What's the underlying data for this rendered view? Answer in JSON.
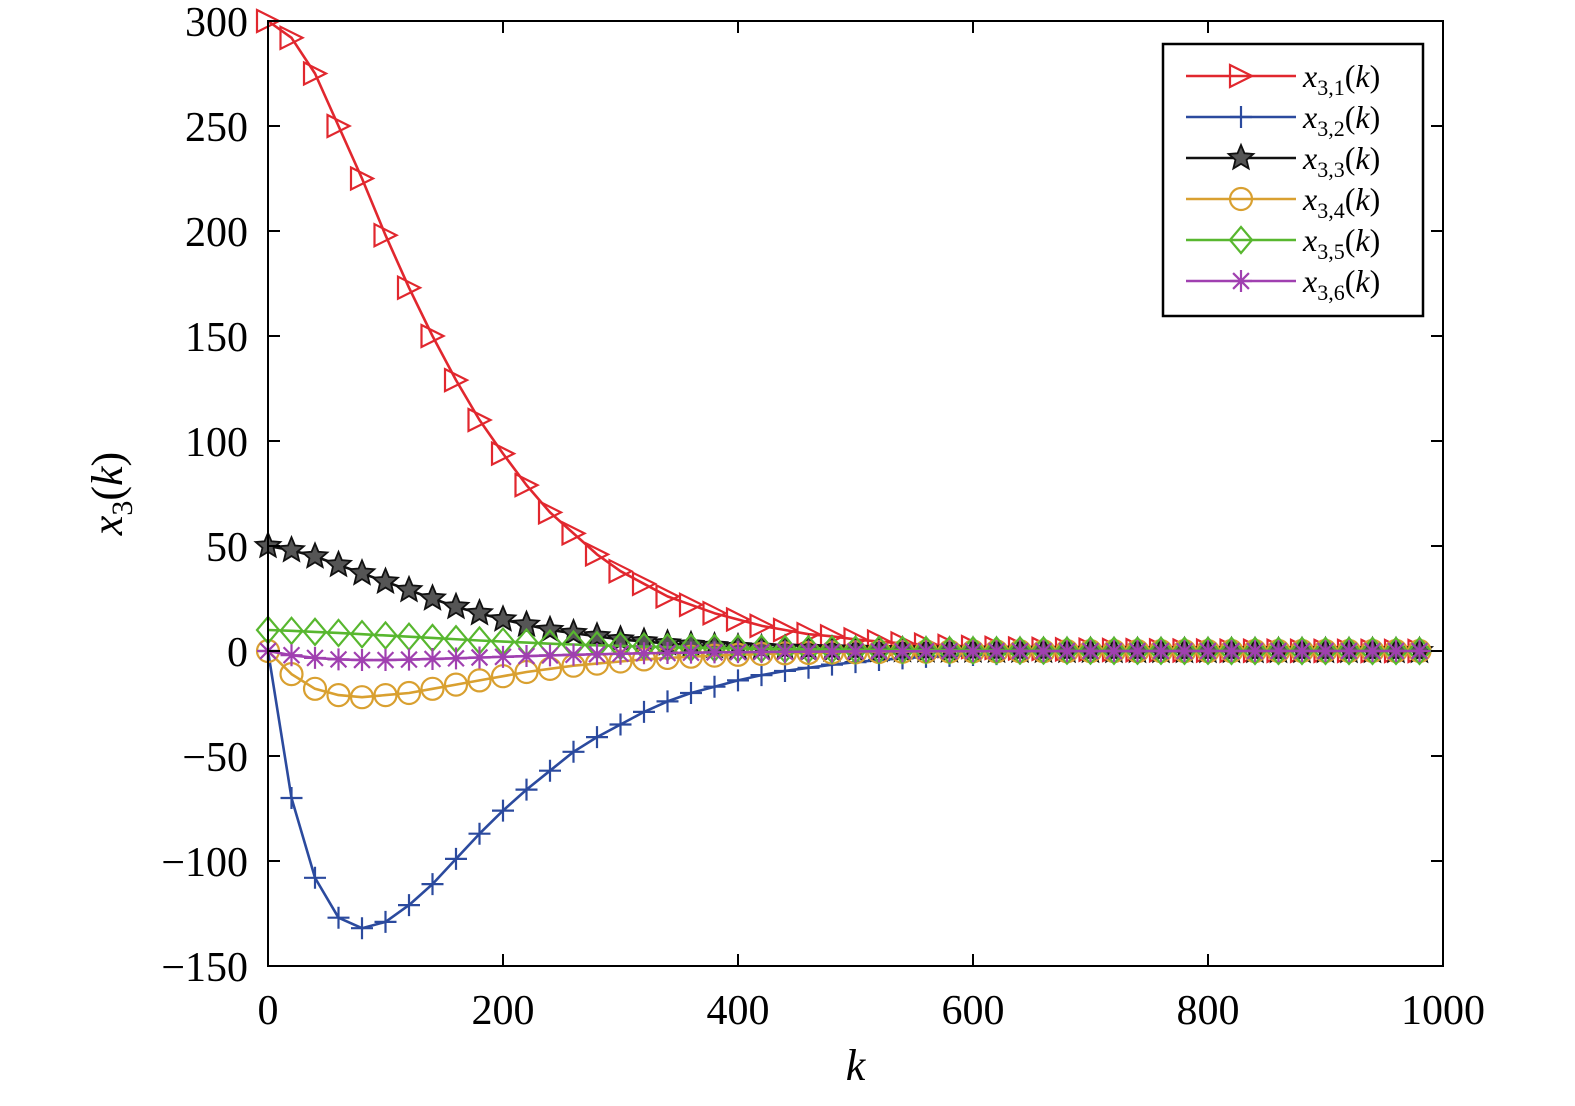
{
  "chart_data": {
    "type": "line",
    "title": "",
    "xlabel": "k",
    "ylabel_parts": {
      "base": "x",
      "sub": "3",
      "arg_open": "(",
      "arg": "k",
      "arg_close": ")"
    },
    "xlim": [
      0,
      1000
    ],
    "ylim": [
      -150,
      300
    ],
    "xticks": [
      0,
      200,
      400,
      600,
      800,
      1000
    ],
    "yticks": [
      -150,
      -100,
      -50,
      0,
      50,
      100,
      150,
      200,
      250,
      300
    ],
    "xtick_labels": [
      "0",
      "200",
      "400",
      "600",
      "800",
      "1000"
    ],
    "ytick_labels": [
      "−150",
      "−100",
      "−50",
      "0",
      "50",
      "100",
      "150",
      "200",
      "250",
      "300"
    ],
    "grid": false,
    "legend_position": "top-right",
    "marker_step": 20,
    "series": [
      {
        "name": "x_{3,1}(k)",
        "label": {
          "base": "x",
          "sub": "3,1",
          "arg": "k"
        },
        "color": "#e1272e",
        "marker": "triangle-right",
        "points": [
          [
            0,
            300
          ],
          [
            20,
            292
          ],
          [
            40,
            275
          ],
          [
            60,
            250
          ],
          [
            80,
            225
          ],
          [
            100,
            198
          ],
          [
            120,
            173
          ],
          [
            140,
            150
          ],
          [
            160,
            129
          ],
          [
            180,
            110
          ],
          [
            200,
            94
          ],
          [
            220,
            79
          ],
          [
            240,
            66
          ],
          [
            260,
            56
          ],
          [
            280,
            46
          ],
          [
            300,
            38
          ],
          [
            320,
            32
          ],
          [
            340,
            26
          ],
          [
            360,
            22
          ],
          [
            380,
            18
          ],
          [
            400,
            15
          ],
          [
            420,
            12
          ],
          [
            440,
            10
          ],
          [
            460,
            8
          ],
          [
            480,
            7
          ],
          [
            500,
            5.5
          ],
          [
            520,
            4.5
          ],
          [
            540,
            3.6
          ],
          [
            560,
            3
          ],
          [
            580,
            2.4
          ],
          [
            600,
            1.9
          ],
          [
            620,
            1.5
          ],
          [
            640,
            1.2
          ],
          [
            660,
            1
          ],
          [
            680,
            0.8
          ],
          [
            700,
            0.6
          ],
          [
            720,
            0.5
          ],
          [
            740,
            0.4
          ],
          [
            760,
            0.3
          ],
          [
            780,
            0.25
          ],
          [
            800,
            0.2
          ],
          [
            820,
            0.15
          ],
          [
            840,
            0.12
          ],
          [
            860,
            0.1
          ],
          [
            880,
            0.08
          ],
          [
            900,
            0.06
          ],
          [
            920,
            0.05
          ],
          [
            940,
            0.04
          ],
          [
            960,
            0.03
          ],
          [
            980,
            0.02
          ]
        ]
      },
      {
        "name": "x_{3,2}(k)",
        "label": {
          "base": "x",
          "sub": "3,2",
          "arg": "k"
        },
        "color": "#2b4a9e",
        "marker": "plus",
        "points": [
          [
            0,
            0
          ],
          [
            20,
            -70
          ],
          [
            40,
            -108
          ],
          [
            60,
            -127
          ],
          [
            80,
            -132
          ],
          [
            100,
            -129
          ],
          [
            120,
            -121
          ],
          [
            140,
            -111
          ],
          [
            160,
            -99
          ],
          [
            180,
            -87
          ],
          [
            200,
            -76
          ],
          [
            220,
            -66
          ],
          [
            240,
            -57
          ],
          [
            260,
            -48
          ],
          [
            280,
            -41
          ],
          [
            300,
            -35
          ],
          [
            320,
            -29
          ],
          [
            340,
            -24
          ],
          [
            360,
            -20
          ],
          [
            380,
            -17
          ],
          [
            400,
            -14
          ],
          [
            420,
            -11.5
          ],
          [
            440,
            -9.5
          ],
          [
            460,
            -8
          ],
          [
            480,
            -6.5
          ],
          [
            500,
            -5.3
          ],
          [
            520,
            -4.3
          ],
          [
            540,
            -3.5
          ],
          [
            560,
            -2.8
          ],
          [
            580,
            -2.3
          ],
          [
            600,
            -1.9
          ],
          [
            620,
            -1.5
          ],
          [
            640,
            -1.2
          ],
          [
            660,
            -1
          ],
          [
            680,
            -0.8
          ],
          [
            700,
            -0.6
          ],
          [
            720,
            -0.5
          ],
          [
            740,
            -0.4
          ],
          [
            760,
            -0.3
          ],
          [
            780,
            -0.25
          ],
          [
            800,
            -0.2
          ],
          [
            820,
            -0.15
          ],
          [
            840,
            -0.12
          ],
          [
            860,
            -0.1
          ],
          [
            880,
            -0.08
          ],
          [
            900,
            -0.06
          ],
          [
            920,
            -0.05
          ],
          [
            940,
            -0.04
          ],
          [
            960,
            -0.03
          ],
          [
            980,
            -0.02
          ]
        ]
      },
      {
        "name": "x_{3,3}(k)",
        "label": {
          "base": "x",
          "sub": "3,3",
          "arg": "k"
        },
        "color": "#111111",
        "marker": "star",
        "points": [
          [
            0,
            50
          ],
          [
            20,
            48
          ],
          [
            40,
            45
          ],
          [
            60,
            41
          ],
          [
            80,
            37
          ],
          [
            100,
            33
          ],
          [
            120,
            29
          ],
          [
            140,
            25
          ],
          [
            160,
            21
          ],
          [
            180,
            18
          ],
          [
            200,
            15
          ],
          [
            220,
            12.5
          ],
          [
            240,
            10
          ],
          [
            260,
            8.5
          ],
          [
            280,
            7
          ],
          [
            300,
            5.5
          ],
          [
            320,
            4.5
          ],
          [
            340,
            3.6
          ],
          [
            360,
            2.9
          ],
          [
            380,
            2.3
          ],
          [
            400,
            1.8
          ],
          [
            420,
            1.4
          ],
          [
            440,
            1.1
          ],
          [
            460,
            0.9
          ],
          [
            480,
            0.7
          ],
          [
            500,
            0.55
          ],
          [
            520,
            0.45
          ],
          [
            540,
            0.35
          ],
          [
            560,
            0.28
          ],
          [
            580,
            0.22
          ],
          [
            600,
            0.18
          ],
          [
            620,
            0.14
          ],
          [
            640,
            0.11
          ],
          [
            660,
            0.09
          ],
          [
            680,
            0.07
          ],
          [
            700,
            0.05
          ],
          [
            720,
            0.04
          ],
          [
            740,
            0.03
          ],
          [
            760,
            0.02
          ],
          [
            780,
            0.02
          ],
          [
            800,
            0.01
          ],
          [
            820,
            0.01
          ],
          [
            840,
            0.01
          ],
          [
            860,
            0
          ],
          [
            880,
            0
          ],
          [
            900,
            0
          ],
          [
            920,
            0
          ],
          [
            940,
            0
          ],
          [
            960,
            0
          ],
          [
            980,
            0
          ]
        ]
      },
      {
        "name": "x_{3,4}(k)",
        "label": {
          "base": "x",
          "sub": "3,4",
          "arg": "k"
        },
        "color": "#d9a030",
        "marker": "circle",
        "points": [
          [
            0,
            0
          ],
          [
            20,
            -11
          ],
          [
            40,
            -18
          ],
          [
            60,
            -21
          ],
          [
            80,
            -22
          ],
          [
            100,
            -21
          ],
          [
            120,
            -20
          ],
          [
            140,
            -18
          ],
          [
            160,
            -16
          ],
          [
            180,
            -14
          ],
          [
            200,
            -12
          ],
          [
            220,
            -10
          ],
          [
            240,
            -8.5
          ],
          [
            260,
            -7
          ],
          [
            280,
            -6
          ],
          [
            300,
            -5
          ],
          [
            320,
            -4
          ],
          [
            340,
            -3.3
          ],
          [
            360,
            -2.7
          ],
          [
            380,
            -2.2
          ],
          [
            400,
            -1.8
          ],
          [
            420,
            -1.4
          ],
          [
            440,
            -1.1
          ],
          [
            460,
            -0.9
          ],
          [
            480,
            -0.7
          ],
          [
            500,
            -0.6
          ],
          [
            520,
            -0.45
          ],
          [
            540,
            -0.36
          ],
          [
            560,
            -0.3
          ],
          [
            580,
            -0.23
          ],
          [
            600,
            -0.18
          ],
          [
            620,
            -0.15
          ],
          [
            640,
            -0.12
          ],
          [
            660,
            -0.09
          ],
          [
            680,
            -0.07
          ],
          [
            700,
            -0.06
          ],
          [
            720,
            -0.05
          ],
          [
            740,
            -0.04
          ],
          [
            760,
            -0.03
          ],
          [
            780,
            -0.02
          ],
          [
            800,
            -0.02
          ],
          [
            820,
            -0.01
          ],
          [
            840,
            -0.01
          ],
          [
            860,
            -0.01
          ],
          [
            880,
            0
          ],
          [
            900,
            0
          ],
          [
            920,
            0
          ],
          [
            940,
            0
          ],
          [
            960,
            0
          ],
          [
            980,
            0
          ]
        ]
      },
      {
        "name": "x_{3,5}(k)",
        "label": {
          "base": "x",
          "sub": "3,5",
          "arg": "k"
        },
        "color": "#58b72f",
        "marker": "diamond",
        "points": [
          [
            0,
            10
          ],
          [
            20,
            9.6
          ],
          [
            40,
            9.1
          ],
          [
            60,
            8.6
          ],
          [
            80,
            8.0
          ],
          [
            100,
            7.4
          ],
          [
            120,
            6.8
          ],
          [
            140,
            6.2
          ],
          [
            160,
            5.6
          ],
          [
            180,
            5.0
          ],
          [
            200,
            4.5
          ],
          [
            220,
            4.0
          ],
          [
            240,
            3.5
          ],
          [
            260,
            3.1
          ],
          [
            280,
            2.7
          ],
          [
            300,
            2.4
          ],
          [
            320,
            2.1
          ],
          [
            340,
            1.8
          ],
          [
            360,
            1.6
          ],
          [
            380,
            1.4
          ],
          [
            400,
            1.2
          ],
          [
            420,
            1.05
          ],
          [
            440,
            0.9
          ],
          [
            460,
            0.8
          ],
          [
            480,
            0.7
          ],
          [
            500,
            0.6
          ],
          [
            520,
            0.52
          ],
          [
            540,
            0.45
          ],
          [
            560,
            0.39
          ],
          [
            580,
            0.34
          ],
          [
            600,
            0.29
          ],
          [
            620,
            0.25
          ],
          [
            640,
            0.22
          ],
          [
            660,
            0.19
          ],
          [
            680,
            0.16
          ],
          [
            700,
            0.14
          ],
          [
            720,
            0.12
          ],
          [
            740,
            0.1
          ],
          [
            760,
            0.09
          ],
          [
            780,
            0.08
          ],
          [
            800,
            0.07
          ],
          [
            820,
            0.06
          ],
          [
            840,
            0.05
          ],
          [
            860,
            0.04
          ],
          [
            880,
            0.04
          ],
          [
            900,
            0.03
          ],
          [
            920,
            0.03
          ],
          [
            940,
            0.02
          ],
          [
            960,
            0.02
          ],
          [
            980,
            0.02
          ]
        ]
      },
      {
        "name": "x_{3,6}(k)",
        "label": {
          "base": "x",
          "sub": "3,6",
          "arg": "k"
        },
        "color": "#a040b0",
        "marker": "asterisk",
        "points": [
          [
            0,
            0
          ],
          [
            20,
            -2
          ],
          [
            40,
            -3.3
          ],
          [
            60,
            -4
          ],
          [
            80,
            -4.3
          ],
          [
            100,
            -4.3
          ],
          [
            120,
            -4.1
          ],
          [
            140,
            -3.8
          ],
          [
            160,
            -3.5
          ],
          [
            180,
            -3.1
          ],
          [
            200,
            -2.8
          ],
          [
            220,
            -2.4
          ],
          [
            240,
            -2.1
          ],
          [
            260,
            -1.8
          ],
          [
            280,
            -1.55
          ],
          [
            300,
            -1.3
          ],
          [
            320,
            -1.1
          ],
          [
            340,
            -0.95
          ],
          [
            360,
            -0.8
          ],
          [
            380,
            -0.65
          ],
          [
            400,
            -0.55
          ],
          [
            420,
            -0.45
          ],
          [
            440,
            -0.37
          ],
          [
            460,
            -0.3
          ],
          [
            480,
            -0.25
          ],
          [
            500,
            -0.2
          ],
          [
            520,
            -0.16
          ],
          [
            540,
            -0.13
          ],
          [
            560,
            -0.11
          ],
          [
            580,
            -0.09
          ],
          [
            600,
            -0.07
          ],
          [
            620,
            -0.06
          ],
          [
            640,
            -0.05
          ],
          [
            660,
            -0.04
          ],
          [
            680,
            -0.03
          ],
          [
            700,
            -0.02
          ],
          [
            720,
            -0.02
          ],
          [
            740,
            -0.01
          ],
          [
            760,
            -0.01
          ],
          [
            780,
            -0.01
          ],
          [
            800,
            0
          ],
          [
            820,
            0
          ],
          [
            840,
            0
          ],
          [
            860,
            0
          ],
          [
            880,
            0
          ],
          [
            900,
            0
          ],
          [
            920,
            0
          ],
          [
            940,
            0
          ],
          [
            960,
            0
          ],
          [
            980,
            0
          ]
        ]
      }
    ]
  }
}
